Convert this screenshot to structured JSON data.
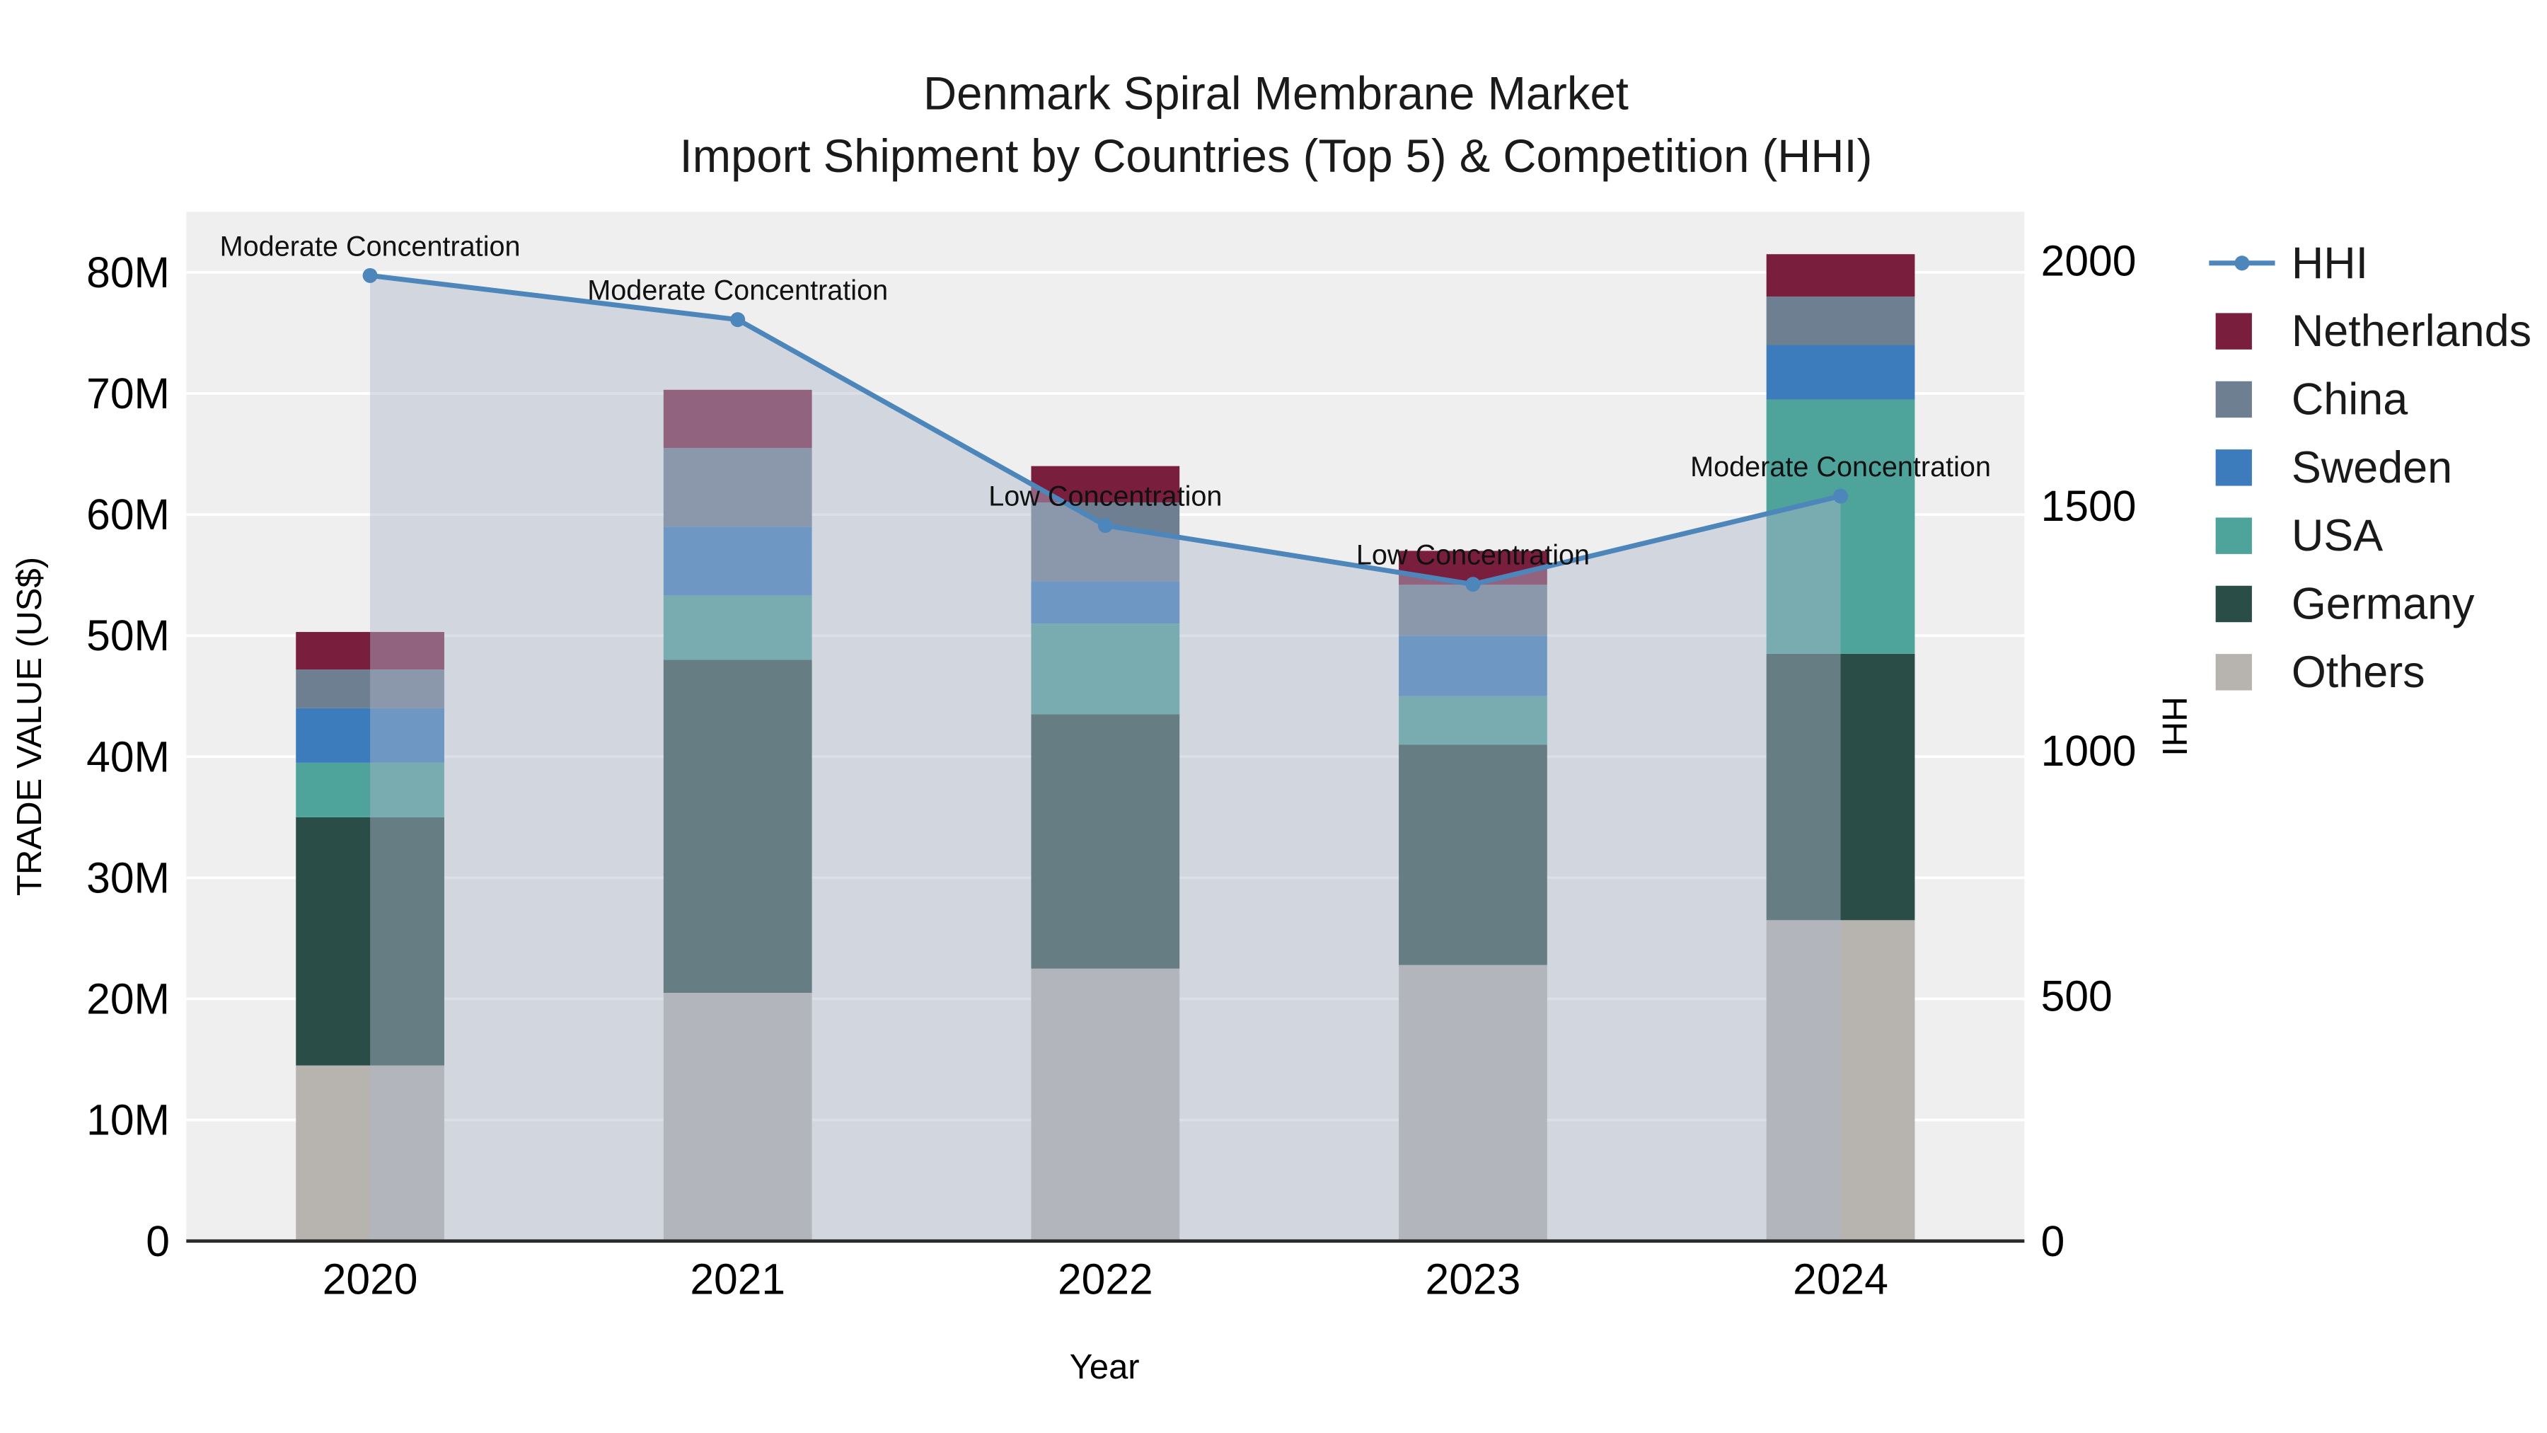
{
  "title": {
    "line1": "Denmark Spiral Membrane Market",
    "line2": "Import Shipment by Countries (Top 5) & Competition (HHI)"
  },
  "axes": {
    "x_title": "Year",
    "y_left_title": "TRADE VALUE (US$)",
    "y_right_title": "HHI"
  },
  "colors": {
    "plot_bg": "#efefef",
    "grid": "#ffffff",
    "axis_line": "#2a2a2a",
    "text": "#111111"
  },
  "chart_data": {
    "type": "bar",
    "subtype": "stacked bars with overlaid HHI line and area fill",
    "title": "Denmark Spiral Membrane Market — Import Shipment by Countries (Top 5) & Competition (HHI)",
    "categories": [
      "2020",
      "2021",
      "2022",
      "2023",
      "2024"
    ],
    "bar_value_unit": "Trade value, millions US$",
    "stack_order_bottom_to_top": [
      "Others",
      "Germany",
      "USA",
      "Sweden",
      "China",
      "Netherlands"
    ],
    "series": [
      {
        "name": "Others",
        "color": "#b7b4af",
        "values": [
          14.5,
          20.5,
          22.5,
          22.8,
          26.5
        ]
      },
      {
        "name": "Germany",
        "color": "#2a4d48",
        "values": [
          20.5,
          27.5,
          21.0,
          18.2,
          22.0
        ]
      },
      {
        "name": "USA",
        "color": "#4ea39a",
        "values": [
          4.5,
          5.3,
          7.5,
          4.0,
          21.0
        ]
      },
      {
        "name": "Sweden",
        "color": "#3c7cbc",
        "values": [
          4.5,
          5.7,
          3.5,
          5.0,
          4.5
        ]
      },
      {
        "name": "China",
        "color": "#6f7f92",
        "values": [
          3.2,
          6.5,
          6.5,
          4.2,
          4.0
        ]
      },
      {
        "name": "Netherlands",
        "color": "#7a1e3e",
        "values": [
          3.1,
          4.8,
          3.0,
          2.8,
          3.5
        ]
      }
    ],
    "bar_totals": [
      50.3,
      70.3,
      64.0,
      57.0,
      81.5
    ],
    "line": {
      "name": "HHI",
      "color": "#4d86bb",
      "fill_under_line": true,
      "fill_color": "rgba(173,184,205,0.45)",
      "values": [
        1970,
        1880,
        1460,
        1340,
        1520
      ]
    },
    "annotations": [
      {
        "x": "2020",
        "text": "Moderate Concentration"
      },
      {
        "x": "2021",
        "text": "Moderate Concentration"
      },
      {
        "x": "2022",
        "text": "Low Concentration"
      },
      {
        "x": "2023",
        "text": "Low Concentration"
      },
      {
        "x": "2024",
        "text": "Moderate Concentration"
      }
    ],
    "ylim_left": [
      0,
      85
    ],
    "ylim_right": [
      0,
      2100
    ],
    "y_left_ticks": [
      0,
      10,
      20,
      30,
      40,
      50,
      60,
      70,
      80
    ],
    "y_left_tick_labels": [
      "0",
      "10M",
      "20M",
      "30M",
      "40M",
      "50M",
      "60M",
      "70M",
      "80M"
    ],
    "y_right_ticks": [
      0,
      500,
      1000,
      1500,
      2000
    ],
    "y_right_tick_labels": [
      "0",
      "500",
      "1000",
      "1500",
      "2000"
    ],
    "grid": true,
    "legend_position": "right",
    "legend": [
      {
        "label": "HHI",
        "type": "line",
        "color": "#4d86bb"
      },
      {
        "label": "Netherlands",
        "type": "square",
        "color": "#7a1e3e"
      },
      {
        "label": "China",
        "type": "square",
        "color": "#6f7f92"
      },
      {
        "label": "Sweden",
        "type": "square",
        "color": "#3c7cbc"
      },
      {
        "label": "USA",
        "type": "square",
        "color": "#4ea39a"
      },
      {
        "label": "Germany",
        "type": "square",
        "color": "#2a4d48"
      },
      {
        "label": "Others",
        "type": "square",
        "color": "#b7b4af"
      }
    ]
  }
}
